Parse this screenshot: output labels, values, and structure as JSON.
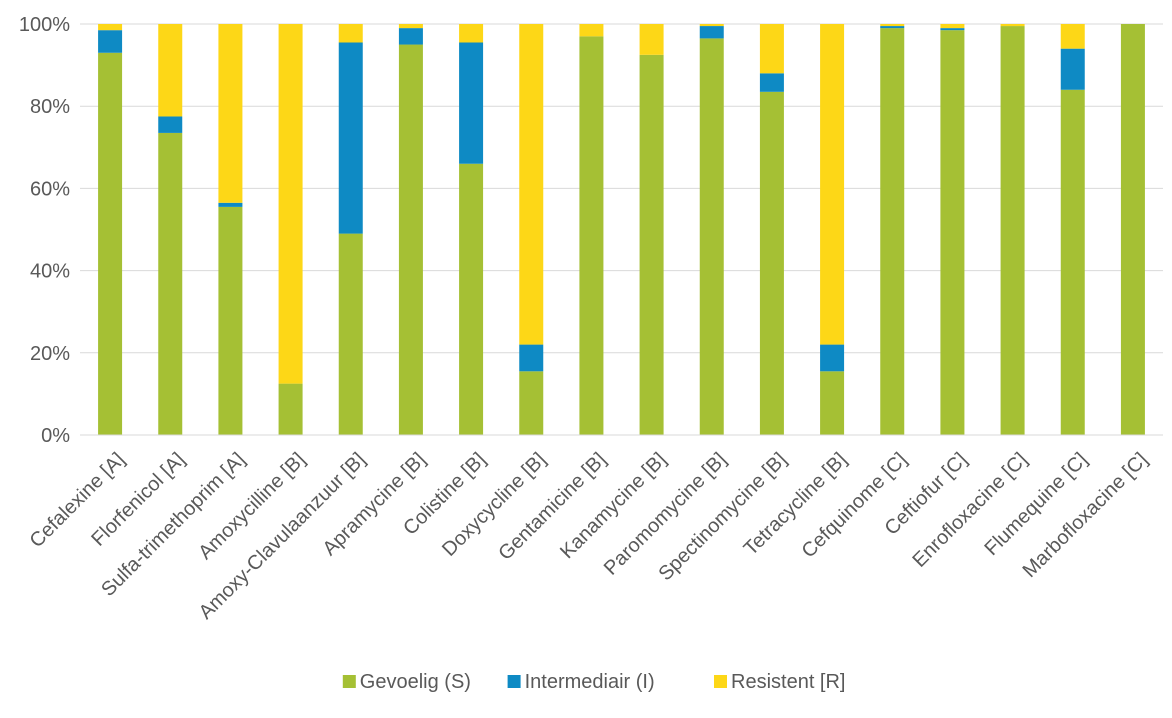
{
  "chart_data": {
    "type": "bar",
    "stacked": true,
    "percent": true,
    "categories": [
      "Cefalexine [A]",
      "Florfenicol [A]",
      "Sulfa-trimethoprim [A]",
      "Amoxycilline  [B]",
      "Amoxy-Clavulaanzuur [B]",
      "Apramycine [B]",
      "Colistine [B]",
      "Doxycycline [B]",
      "Gentamicine [B]",
      "Kanamycine [B]",
      "Paromomycine [B]",
      "Spectinomycine [B]",
      "Tetracycline [B]",
      "Cefquinome [C]",
      "Ceftiofur [C]",
      "Enrofloxacine [C]",
      "Flumequine [C]",
      "Marbofloxacine [C]"
    ],
    "series": [
      {
        "name": "Gevoelig (S)",
        "color": "#a5c034",
        "values": [
          93,
          73.5,
          55.5,
          12.5,
          49,
          95,
          66,
          15.5,
          97,
          92.5,
          96.5,
          83.5,
          15.5,
          99,
          98.5,
          99.5,
          84,
          100
        ]
      },
      {
        "name": "Intermediair (I)",
        "color": "#0e8ac4",
        "values": [
          5.5,
          4,
          1,
          0,
          46.5,
          4,
          29.5,
          6.5,
          0,
          0,
          3,
          4.5,
          6.5,
          0.5,
          0.5,
          0,
          10,
          0
        ]
      },
      {
        "name": "Resistent [R]",
        "color": "#fdd717",
        "values": [
          1.5,
          22.5,
          43.5,
          87.5,
          4.5,
          1,
          4.5,
          78,
          3,
          7.5,
          0.5,
          12,
          78,
          0.5,
          1,
          0.5,
          6,
          0
        ]
      }
    ],
    "ylim": [
      0,
      100
    ],
    "yticks": [
      "0%",
      "20%",
      "40%",
      "60%",
      "80%",
      "100%"
    ],
    "ytick_values": [
      0,
      20,
      40,
      60,
      80,
      100
    ],
    "grid": true,
    "legend_position": "bottom"
  }
}
